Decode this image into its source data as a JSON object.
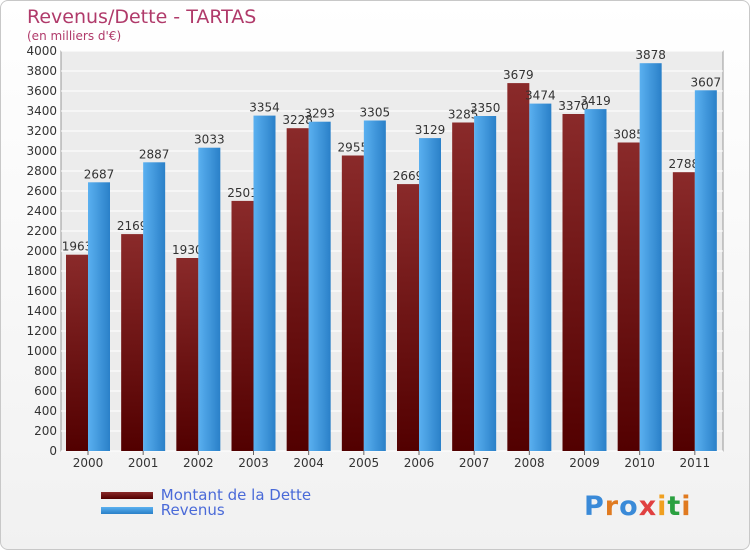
{
  "chart_data": {
    "type": "bar",
    "title": "Revenus/Dette - TARTAS",
    "subtitle": "(en milliers d'€)",
    "categories": [
      "2000",
      "2001",
      "2002",
      "2003",
      "2004",
      "2005",
      "2006",
      "2007",
      "2008",
      "2009",
      "2010",
      "2011"
    ],
    "series": [
      {
        "name": "Montant de la Dette",
        "color": "#7a1414",
        "values": [
          1963,
          2169,
          1930,
          2501,
          3228,
          2955,
          2669,
          3285,
          3679,
          3370,
          3085,
          2788
        ]
      },
      {
        "name": "Revenus",
        "color": "#4aa3ea",
        "values": [
          2687,
          2887,
          3033,
          3354,
          3293,
          3305,
          3129,
          3350,
          3474,
          3419,
          3878,
          3607
        ]
      }
    ],
    "ylim": [
      0,
      4000
    ],
    "ytick_step": 200,
    "grid": true,
    "legend_position": "bottom-left"
  },
  "logo": {
    "text": "Proxiti",
    "letter_colors": [
      "#3a8ad8",
      "#e07a20",
      "#3a8ad8",
      "#e04040",
      "#f0a020",
      "#2aa040",
      "#e07a20"
    ]
  }
}
